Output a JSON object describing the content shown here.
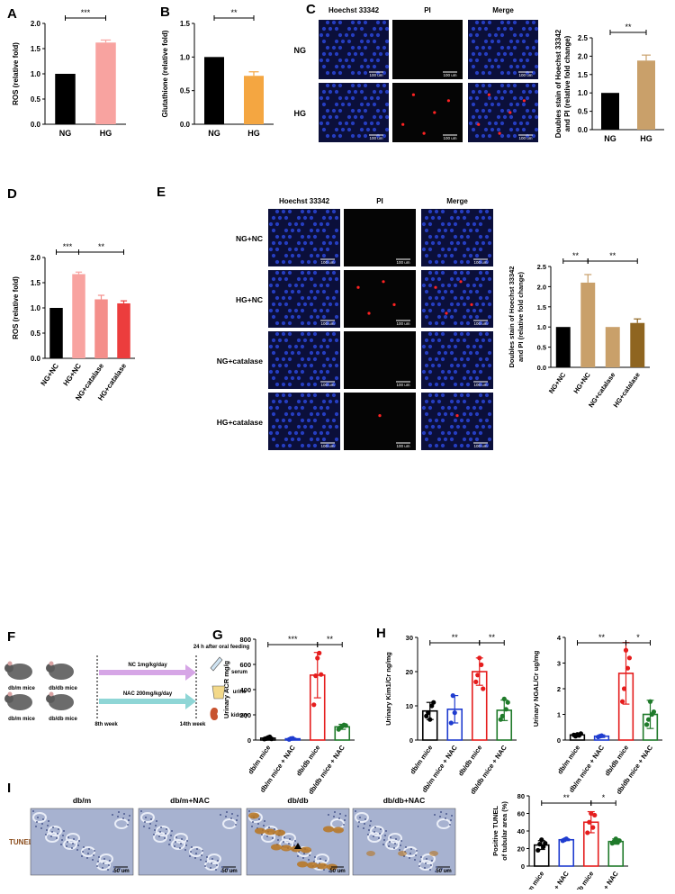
{
  "panel_letters": [
    "A",
    "B",
    "C",
    "D",
    "E",
    "F",
    "G",
    "H",
    "I"
  ],
  "micro": {
    "C": {
      "cols": [
        "Hoechst 33342",
        "PI",
        "Merge"
      ],
      "rows": [
        "NG",
        "HG"
      ],
      "scale": "100 um"
    },
    "E": {
      "cols": [
        "Hoechst 33342",
        "PI",
        "Merge"
      ],
      "rows": [
        "NG+NC",
        "HG+NC",
        "NG+catalase",
        "HG+catalase"
      ],
      "scale": "100 um"
    },
    "I": {
      "cols": [
        "db/m",
        "db/m+NAC",
        "db/db",
        "db/db+NAC"
      ],
      "row_label": "TUNEL",
      "scale": "50 um"
    }
  },
  "schematic": {
    "mice": [
      "db/m mice",
      "db/db mice",
      "db/m mice",
      "db/db mice"
    ],
    "arrow1": "NC 1mg/kg/day",
    "arrow2": "NAC 200mg/kg/day",
    "start": "8th week",
    "end": "14th week",
    "top_note": "24 h after oral feeding",
    "samples": [
      "serum",
      "urine",
      "kidney"
    ]
  },
  "colors": {
    "black": "#000000",
    "pink": "#f8a3a0",
    "orange": "#f4a641",
    "tan": "#c9a06a",
    "redPink": "#f48f8b",
    "red": "#ec3d3d",
    "brown": "#8f6520",
    "blue": "#1f3ccf",
    "red_open": "#e51d1d",
    "green": "#1f7a2a",
    "cell_blue": "#2236a8",
    "ihc": "#9aa7c8"
  },
  "chart_data": [
    {
      "id": "A",
      "type": "bar",
      "categories": [
        "NG",
        "HG"
      ],
      "values": [
        1.0,
        1.62
      ],
      "errors": [
        0,
        0.05
      ],
      "ylabel": "ROS (relative fold)",
      "ylim": [
        0,
        2.0
      ],
      "yticks": [
        "0.0",
        "0.5",
        "1.0",
        "1.5",
        "2.0"
      ],
      "colors": [
        "#000000",
        "#f8a3a0"
      ],
      "sig": [
        {
          "from": 0,
          "to": 1,
          "label": "***"
        }
      ]
    },
    {
      "id": "B",
      "type": "bar",
      "categories": [
        "NG",
        "HG"
      ],
      "values": [
        1.0,
        0.72
      ],
      "errors": [
        0,
        0.06
      ],
      "ylabel": "Glutathione (relative fold)",
      "ylim": [
        0,
        1.5
      ],
      "yticks": [
        "0.0",
        "0.5",
        "1.0",
        "1.5"
      ],
      "colors": [
        "#000000",
        "#f4a641"
      ],
      "sig": [
        {
          "from": 0,
          "to": 1,
          "label": "**"
        }
      ]
    },
    {
      "id": "C",
      "type": "bar",
      "categories": [
        "NG",
        "HG"
      ],
      "values": [
        1.0,
        1.88
      ],
      "errors": [
        0,
        0.15
      ],
      "ylabel": "Doubles stain of Hoechst 33342\nand PI (relative fold change)",
      "ylim": [
        0,
        2.5
      ],
      "yticks": [
        "0.0",
        "0.5",
        "1.0",
        "1.5",
        "2.0",
        "2.5"
      ],
      "colors": [
        "#000000",
        "#c9a06a"
      ],
      "sig": [
        {
          "from": 0,
          "to": 1,
          "label": "**"
        }
      ]
    },
    {
      "id": "D",
      "type": "bar",
      "categories": [
        "NG+NC",
        "HG+NC",
        "NG+catalase",
        "HG+catalase"
      ],
      "values": [
        1.0,
        1.67,
        1.17,
        1.09
      ],
      "errors": [
        0,
        0.04,
        0.08,
        0.05
      ],
      "ylabel": "ROS (relative fold)",
      "ylim": [
        0,
        2.0
      ],
      "yticks": [
        "0.0",
        "0.5",
        "1.0",
        "1.5",
        "2.0"
      ],
      "colors": [
        "#000000",
        "#f8a3a0",
        "#f48f8b",
        "#ec3d3d"
      ],
      "sig": [
        {
          "from": 0,
          "to": 1,
          "label": "***"
        },
        {
          "from": 1,
          "to": 3,
          "label": "**"
        }
      ]
    },
    {
      "id": "E",
      "type": "bar",
      "categories": [
        "NG+NC",
        "HG+NC",
        "NG+catalase",
        "HG+catalase"
      ],
      "values": [
        1.0,
        2.1,
        1.0,
        1.1
      ],
      "errors": [
        0,
        0.2,
        0,
        0.1
      ],
      "ylabel": "Doubles stain of Hoechst 33342\nand PI (relative fold change)",
      "ylim": [
        0,
        2.5
      ],
      "yticks": [
        "0.0",
        "0.5",
        "1.0",
        "1.5",
        "2.0",
        "2.5"
      ],
      "colors": [
        "#000000",
        "#c9a06a",
        "#c9a06a",
        "#8f6520"
      ],
      "sig": [
        {
          "from": 0,
          "to": 1,
          "label": "**"
        },
        {
          "from": 1,
          "to": 3,
          "label": "**"
        }
      ]
    },
    {
      "id": "G",
      "type": "bar",
      "categories": [
        "db/m mice",
        "db/m mice + NAC",
        "db/db mice",
        "db/db mice + NAC"
      ],
      "values": [
        15,
        10,
        515,
        105
      ],
      "errors": [
        10,
        5,
        180,
        20
      ],
      "points": [
        [
          8,
          12,
          20,
          25,
          10
        ],
        [
          5,
          12,
          14
        ],
        [
          280,
          510,
          650,
          690,
          520
        ],
        [
          85,
          100,
          110,
          120,
          115
        ]
      ],
      "ylabel": "Urinary ACR mg/g",
      "ylim": [
        0,
        800
      ],
      "yticks": [
        "0",
        "200",
        "400",
        "600",
        "800"
      ],
      "colors": [
        "#000000",
        "#1f3ccf",
        "#e51d1d",
        "#1f7a2a"
      ],
      "sig": [
        {
          "from": 0,
          "to": 2,
          "label": "***"
        },
        {
          "from": 2,
          "to": 3,
          "label": "**"
        }
      ]
    },
    {
      "id": "H1",
      "type": "bar",
      "categories": [
        "db/m mice",
        "db/m mice + NAC",
        "db/db mice",
        "db/db mice + NAC"
      ],
      "values": [
        8.5,
        9.0,
        20.0,
        8.7
      ],
      "errors": [
        2.5,
        4.0,
        4.0,
        3.0
      ],
      "points": [
        [
          7,
          8,
          6,
          10,
          11
        ],
        [
          5,
          13,
          8
        ],
        [
          17,
          19,
          24,
          22,
          15
        ],
        [
          6,
          7,
          12,
          9,
          11
        ]
      ],
      "ylabel": "Urinary Kim1/Cr ng/mg",
      "ylim": [
        0,
        30
      ],
      "yticks": [
        "0",
        "10",
        "20",
        "30"
      ],
      "colors": [
        "#000000",
        "#1f3ccf",
        "#e51d1d",
        "#1f7a2a"
      ],
      "sig": [
        {
          "from": 0,
          "to": 2,
          "label": "**"
        },
        {
          "from": 2,
          "to": 3,
          "label": "**"
        }
      ]
    },
    {
      "id": "H2",
      "type": "bar",
      "categories": [
        "db/m mice",
        "db/m mice + NAC",
        "db/db mice",
        "db/db mice + NAC"
      ],
      "values": [
        0.2,
        0.15,
        2.6,
        1.0
      ],
      "errors": [
        0.05,
        0.05,
        1.2,
        0.55
      ],
      "points": [
        [
          0.2,
          0.15,
          0.22,
          0.18,
          0.25
        ],
        [
          0.12,
          0.15,
          0.17
        ],
        [
          1.5,
          2.0,
          3.5,
          2.8,
          3.2
        ],
        [
          0.6,
          0.8,
          1.5,
          1.0,
          1.1
        ]
      ],
      "ylabel": "Urinary NGAL/Cr ug/mg",
      "ylim": [
        0,
        4
      ],
      "yticks": [
        "0",
        "1",
        "2",
        "3",
        "4"
      ],
      "colors": [
        "#000000",
        "#1f3ccf",
        "#e51d1d",
        "#1f7a2a"
      ],
      "sig": [
        {
          "from": 0,
          "to": 2,
          "label": "**"
        },
        {
          "from": 2,
          "to": 3,
          "label": "*"
        }
      ]
    },
    {
      "id": "I",
      "type": "bar",
      "categories": [
        "db/m mice",
        "db/m mice + NAC",
        "db/db mice",
        "db/db mice + NAC"
      ],
      "values": [
        24,
        30,
        50,
        28
      ],
      "errors": [
        5,
        1,
        12,
        3
      ],
      "points": [
        [
          18,
          25,
          30,
          22,
          26
        ],
        [
          29,
          30,
          31
        ],
        [
          38,
          50,
          60,
          44,
          58
        ],
        [
          26,
          28,
          31,
          27,
          29
        ]
      ],
      "ylabel": "Positive TUNEL\nof tubular area (%)",
      "ylim": [
        0,
        80
      ],
      "yticks": [
        "0",
        "20",
        "40",
        "60",
        "80"
      ],
      "colors": [
        "#000000",
        "#1f3ccf",
        "#e51d1d",
        "#1f7a2a"
      ],
      "sig": [
        {
          "from": 0,
          "to": 2,
          "label": "**"
        },
        {
          "from": 2,
          "to": 3,
          "label": "*"
        }
      ]
    }
  ]
}
